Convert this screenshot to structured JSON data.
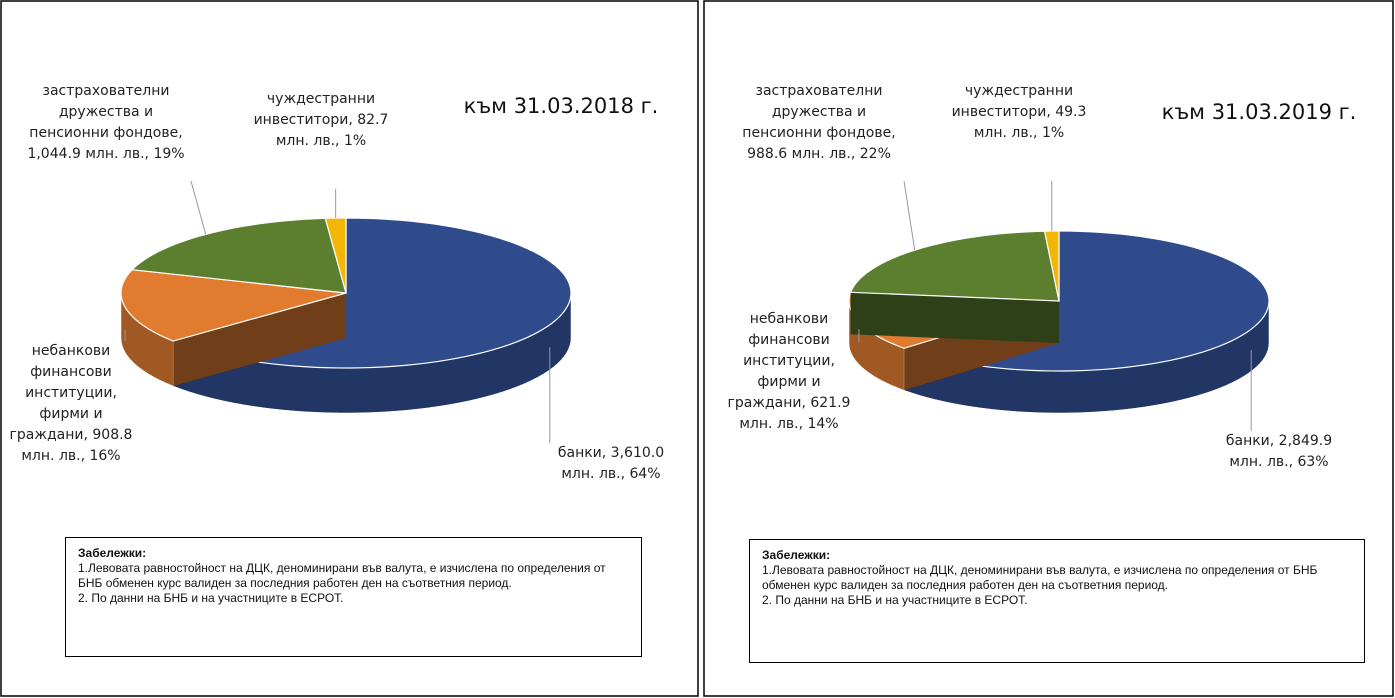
{
  "chart_data": [
    {
      "type": "pie",
      "title": "към 31.03.2018 г.",
      "values": [
        3610.0,
        908.8,
        1044.9,
        82.7
      ],
      "value_labels": [
        "банки, 3,610.0 млн. лв., 64%",
        "небанкови финансови институции, фирми и граждани, 908.8 млн. лв., 16%",
        "застрахователни дружества и пенсионни фондове, 1,044.9 млн. лв., 19%",
        "чуждестранни инвеститори, 82.7 млн. лв., 1%"
      ],
      "colors": [
        "#2f4b8c",
        "#e07b30",
        "#5b7f2f",
        "#f2b705"
      ],
      "notes": {
        "title": "Забележки:",
        "items": [
          "1.Левовата равностойност на ДЦК, деноминирани във валута, е изчислена по определения от БНБ обменен курс валиден за последния работен ден на съответния период.",
          "2. По данни на БНБ и на участниците в ЕСРОТ."
        ]
      }
    },
    {
      "type": "pie",
      "title": "към 31.03.2019 г.",
      "values": [
        2849.9,
        621.9,
        988.6,
        49.3
      ],
      "value_labels": [
        "банки, 2,849.9 млн. лв., 63%",
        "небанкови финансови институции, фирми и граждани, 621.9 млн. лв., 14%",
        "застрахователни дружества и пенсионни фондове, 988.6 млн. лв., 22%",
        "чуждестранни инвеститори, 49.3 млн. лв., 1%"
      ],
      "colors": [
        "#2f4b8c",
        "#e07b30",
        "#5b7f2f",
        "#f2b705"
      ],
      "notes": {
        "title": "Забележки:",
        "items": [
          "1.Левовата равностойност на ДЦК, деноминирани във валута, е изчислена по определения от БНБ обменен курс валиден за последния работен ден на съответния период.",
          "2. По данни на БНБ и на участниците в ЕСРОТ."
        ]
      }
    }
  ]
}
